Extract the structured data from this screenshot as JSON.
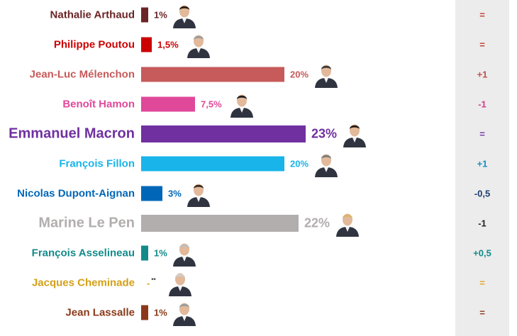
{
  "chart_data": {
    "type": "bar",
    "orientation": "horizontal",
    "unit": "%",
    "xlim": [
      0,
      23
    ],
    "grid": false,
    "legend": "none",
    "candidates": [
      {
        "name": "Nathalie Arthaud",
        "value": 1,
        "label": "1%",
        "change": "=",
        "color": "#6b2426",
        "change_color": "#c0392b",
        "big": false
      },
      {
        "name": "Philippe Poutou",
        "value": 1.5,
        "label": "1,5%",
        "change": "=",
        "color": "#cc0000",
        "change_color": "#c0392b",
        "big": false
      },
      {
        "name": "Jean-Luc Mélenchon",
        "value": 20,
        "label": "20%",
        "change": "+1",
        "color": "#c75a5a",
        "change_color": "#c0504d",
        "big": false
      },
      {
        "name": "Benoît Hamon",
        "value": 7.5,
        "label": "7,5%",
        "change": "-1",
        "color": "#e0489a",
        "change_color": "#d63a8c",
        "big": false
      },
      {
        "name": "Emmanuel Macron",
        "value": 23,
        "label": "23%",
        "change": "=",
        "color": "#7030a0",
        "change_color": "#7030a0",
        "big": true
      },
      {
        "name": "François Fillon",
        "value": 20,
        "label": "20%",
        "change": "+1",
        "color": "#18b4ea",
        "change_color": "#1a8fc4",
        "big": false
      },
      {
        "name": "Nicolas Dupont-Aignan",
        "value": 3,
        "label": "3%",
        "change": "-0,5",
        "color": "#0067b8",
        "change_color": "#1c3d6e",
        "big": false
      },
      {
        "name": "Marine Le Pen",
        "value": 22,
        "label": "22%",
        "change": "-1",
        "color": "#b3aeae",
        "change_color": "#222222",
        "big": true
      },
      {
        "name": "François Asselineau",
        "value": 1,
        "label": "1%",
        "change": "+0,5",
        "color": "#138a8a",
        "change_color": "#138a8a",
        "big": false
      },
      {
        "name": "Jacques Cheminade",
        "value": 0,
        "label": "-",
        "label_sup": "**",
        "change": "=",
        "color": "#d4a017",
        "change_color": "#e0a020",
        "big": false
      },
      {
        "name": "Jean Lassalle",
        "value": 1,
        "label": "1%",
        "change": "=",
        "color": "#8a3a1a",
        "change_color": "#8a3a1a",
        "big": false
      }
    ]
  }
}
